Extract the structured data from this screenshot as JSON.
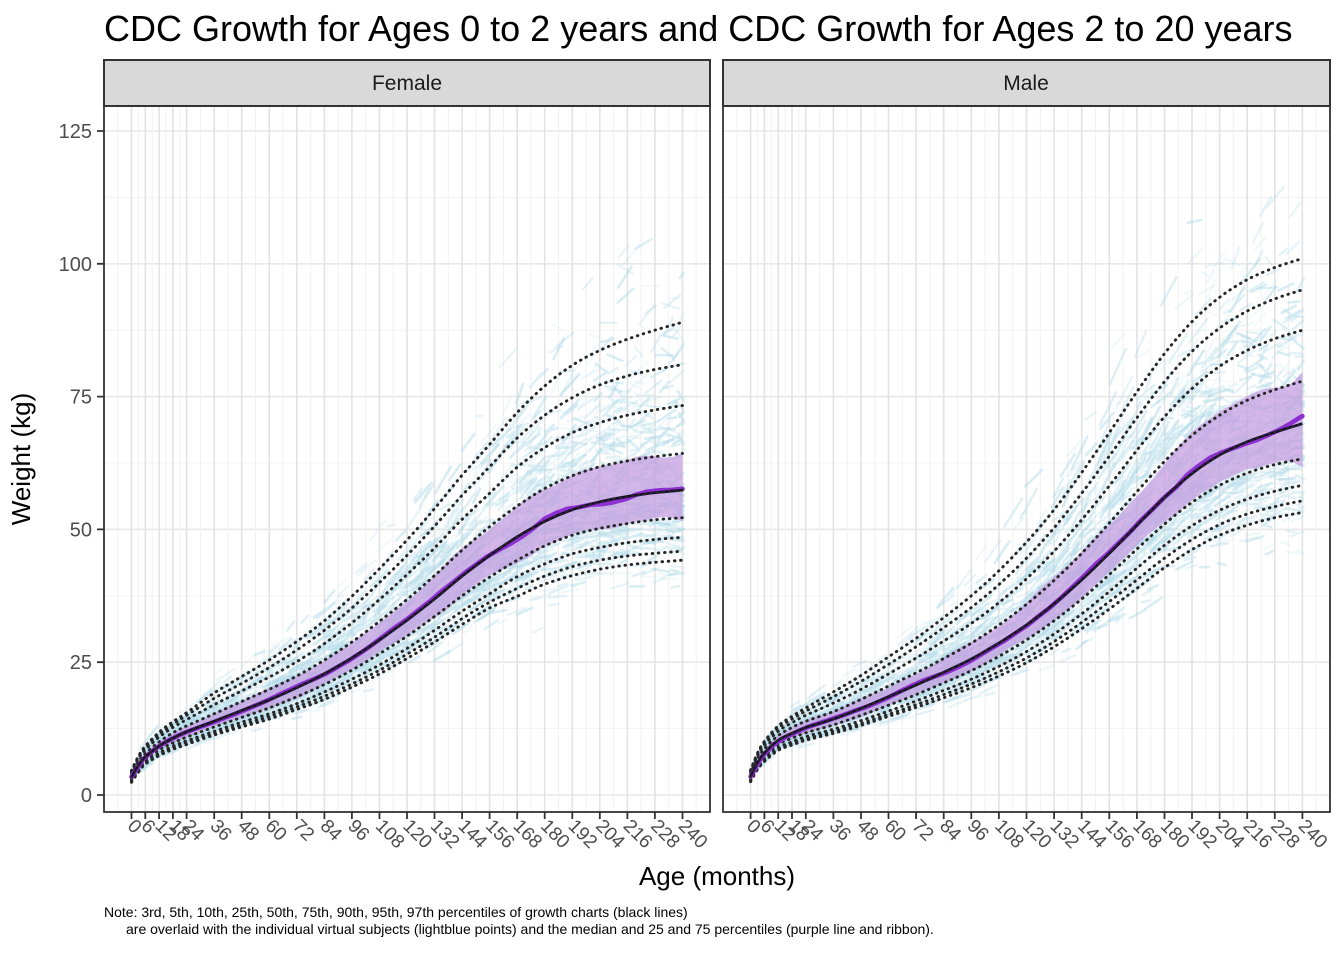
{
  "title": "CDC Growth for Ages 0 to 2 years and CDC Growth for Ages 2 to 20 years",
  "x_axis": {
    "label": "Age (months)",
    "ticks": [
      0,
      6,
      12,
      18,
      24,
      36,
      48,
      60,
      72,
      84,
      96,
      108,
      120,
      132,
      144,
      156,
      168,
      180,
      192,
      204,
      216,
      228,
      240
    ]
  },
  "y_axis": {
    "label": "Weight (kg)",
    "ticks": [
      0,
      25,
      50,
      75,
      100,
      125
    ]
  },
  "note": {
    "line1": "Note: 3rd, 5th, 10th, 25th, 50th, 75th, 90th, 95th, 97th percentiles of growth charts (black lines)",
    "line2": "are overlaid with the individual virtual subjects (lightblue points) and the median and 25 and 75 percentiles (purple line and ribbon)."
  },
  "colors": {
    "strip_bg": "#D9D9D9",
    "strip_border": "#333333",
    "panel_bg": "#FFFFFF",
    "panel_border": "#333333",
    "grid_major_v": "#E3E3E3",
    "grid_minor_v": "#F1F1F1",
    "grid_major_h": "#E7E7E7",
    "grid_minor_h": "#F3F3F3",
    "axis_text": "#4D4D4D",
    "tick_mark": "#333333",
    "subject_points": "#ADD8E6",
    "percentile_lines": "#262626",
    "ribbon_fill": "#C39BDF",
    "median_purple": "#8E2FD1",
    "median_dark": "#1A0D33"
  },
  "chart_data": {
    "type": "line",
    "title": "CDC Growth for Ages 0 to 2 years and CDC Growth for Ages 2 to 20 years",
    "xlabel": "Age (months)",
    "ylabel": "Weight (kg)",
    "xlim": [
      0,
      240
    ],
    "ylim": [
      0,
      125
    ],
    "grid": true,
    "legend": false,
    "percentile_labels": [
      "3rd",
      "5th",
      "10th",
      "25th",
      "50th",
      "75th",
      "90th",
      "95th",
      "97th"
    ],
    "overlays": {
      "black_dotted_lines": "CDC growth chart percentiles (3rd-97th)",
      "lightblue_points": "individual virtual subjects",
      "purple_line": "median of virtual subjects",
      "purple_ribbon": "25 and 75 percentiles of virtual subjects"
    },
    "ages": [
      0,
      3,
      6,
      12,
      18,
      24,
      36,
      48,
      60,
      72,
      84,
      96,
      108,
      120,
      132,
      144,
      156,
      168,
      180,
      192,
      204,
      216,
      228,
      240
    ],
    "facets": [
      {
        "name": "Female",
        "percentiles": {
          "p3": [
            2.4,
            4.3,
            5.8,
            7.4,
            8.6,
            9.5,
            11.3,
            12.8,
            14.3,
            16.1,
            18.0,
            20.3,
            22.8,
            25.7,
            28.8,
            32.1,
            35.2,
            37.4,
            39.7,
            41.3,
            42.5,
            43.3,
            43.8,
            44.2
          ],
          "p5": [
            2.5,
            4.5,
            6.0,
            7.6,
            8.9,
            9.9,
            11.6,
            13.2,
            14.8,
            16.6,
            18.6,
            20.9,
            23.5,
            26.5,
            29.7,
            33.2,
            36.3,
            38.9,
            41.2,
            43.0,
            44.2,
            45.0,
            45.5,
            45.9
          ],
          "p10": [
            2.7,
            4.6,
            6.2,
            7.9,
            9.2,
            10.2,
            12.0,
            13.7,
            15.3,
            17.2,
            19.4,
            21.8,
            24.5,
            27.6,
            31.0,
            34.6,
            37.9,
            41.1,
            43.5,
            45.4,
            46.6,
            47.5,
            48.1,
            48.5
          ],
          "p25": [
            3.0,
            5.0,
            6.6,
            8.5,
            9.8,
            10.9,
            12.8,
            14.6,
            16.4,
            18.5,
            20.8,
            23.5,
            26.6,
            29.9,
            33.6,
            37.5,
            41.0,
            44.2,
            46.9,
            48.9,
            50.2,
            51.1,
            51.8,
            52.2
          ],
          "p50": [
            3.4,
            5.6,
            7.2,
            9.2,
            10.7,
            11.9,
            13.9,
            15.9,
            17.9,
            20.2,
            22.8,
            25.8,
            29.2,
            32.9,
            36.9,
            41.2,
            45.1,
            48.6,
            51.5,
            53.7,
            55.2,
            56.2,
            56.9,
            57.4
          ],
          "p75": [
            3.8,
            6.2,
            7.8,
            10.0,
            11.7,
            13.0,
            15.3,
            17.6,
            19.9,
            22.4,
            25.4,
            28.8,
            32.7,
            36.8,
            41.3,
            46.1,
            50.5,
            54.4,
            57.7,
            60.1,
            61.8,
            62.9,
            63.7,
            64.3
          ],
          "p90": [
            4.2,
            6.8,
            8.5,
            10.9,
            12.7,
            14.2,
            17.0,
            19.6,
            22.2,
            25.1,
            28.5,
            32.4,
            36.8,
            41.5,
            46.5,
            51.9,
            56.8,
            61.7,
            65.4,
            68.2,
            70.1,
            71.5,
            72.5,
            73.3
          ],
          "p95": [
            4.4,
            7.1,
            8.9,
            11.4,
            13.3,
            15.0,
            18.2,
            21.0,
            24.0,
            27.3,
            31.0,
            35.2,
            40.0,
            45.1,
            50.6,
            56.4,
            61.8,
            67.2,
            71.5,
            74.8,
            77.2,
            78.9,
            80.1,
            81.0
          ],
          "p97": [
            4.6,
            7.3,
            9.2,
            11.8,
            13.8,
            15.5,
            19.2,
            22.3,
            25.4,
            28.9,
            32.8,
            37.4,
            42.6,
            48.0,
            53.9,
            60.2,
            66.0,
            72.0,
            77.0,
            80.9,
            83.7,
            85.8,
            87.5,
            89.0
          ]
        }
      },
      {
        "name": "Male",
        "percentiles": {
          "p3": [
            2.5,
            4.8,
            6.3,
            8.4,
            9.4,
            10.3,
            11.6,
            13.1,
            14.8,
            16.5,
            18.3,
            20.2,
            22.4,
            24.9,
            27.9,
            31.3,
            35.0,
            38.9,
            42.8,
            46.2,
            48.9,
            50.8,
            52.2,
            53.2
          ],
          "p5": [
            2.7,
            5.0,
            6.5,
            8.6,
            9.7,
            10.6,
            12.0,
            13.5,
            15.2,
            17.0,
            18.9,
            20.9,
            23.2,
            25.8,
            28.9,
            32.5,
            36.4,
            40.5,
            44.6,
            48.1,
            50.9,
            52.9,
            54.3,
            55.4
          ],
          "p10": [
            2.8,
            5.2,
            6.8,
            8.9,
            10.0,
            11.0,
            12.4,
            14.0,
            15.8,
            17.7,
            19.7,
            21.8,
            24.2,
            27.0,
            30.3,
            34.1,
            38.3,
            42.7,
            47.0,
            50.7,
            53.6,
            55.7,
            57.2,
            58.3
          ],
          "p25": [
            3.1,
            5.6,
            7.2,
            9.5,
            10.7,
            11.7,
            13.2,
            15.0,
            16.9,
            18.9,
            21.1,
            23.4,
            26.1,
            29.2,
            32.8,
            36.9,
            41.5,
            46.3,
            51.0,
            55.1,
            58.3,
            60.6,
            62.2,
            63.3
          ],
          "p50": [
            3.5,
            6.1,
            7.9,
            10.3,
            11.6,
            12.7,
            14.3,
            16.3,
            18.5,
            20.7,
            23.1,
            25.6,
            28.6,
            32.0,
            36.0,
            40.5,
            45.5,
            50.8,
            56.0,
            60.5,
            64.0,
            66.5,
            68.3,
            69.9
          ],
          "p75": [
            3.9,
            6.8,
            8.7,
            11.2,
            12.7,
            13.9,
            15.7,
            18.0,
            20.5,
            23.0,
            25.7,
            28.6,
            32.0,
            35.9,
            40.4,
            45.5,
            51.2,
            57.1,
            62.8,
            67.7,
            71.5,
            74.3,
            76.3,
            77.9
          ],
          "p90": [
            4.3,
            7.4,
            9.4,
            12.0,
            13.6,
            15.0,
            17.3,
            19.9,
            22.8,
            25.8,
            29.0,
            32.3,
            36.2,
            40.7,
            45.9,
            51.8,
            58.2,
            64.9,
            71.2,
            76.5,
            80.7,
            83.7,
            85.9,
            87.5
          ],
          "p95": [
            4.5,
            7.7,
            9.8,
            12.6,
            14.3,
            15.8,
            18.5,
            21.4,
            24.6,
            27.9,
            31.5,
            35.3,
            39.6,
            44.6,
            50.3,
            56.8,
            63.8,
            71.0,
            77.8,
            83.5,
            87.9,
            91.1,
            93.4,
            95.1
          ],
          "p97": [
            4.7,
            7.9,
            10.1,
            13.0,
            14.8,
            16.4,
            19.4,
            22.5,
            26.0,
            29.5,
            33.4,
            37.5,
            42.2,
            47.6,
            53.7,
            60.7,
            68.2,
            75.9,
            83.1,
            89.1,
            93.7,
            97.0,
            99.3,
            101.0
          ]
        }
      }
    ]
  }
}
